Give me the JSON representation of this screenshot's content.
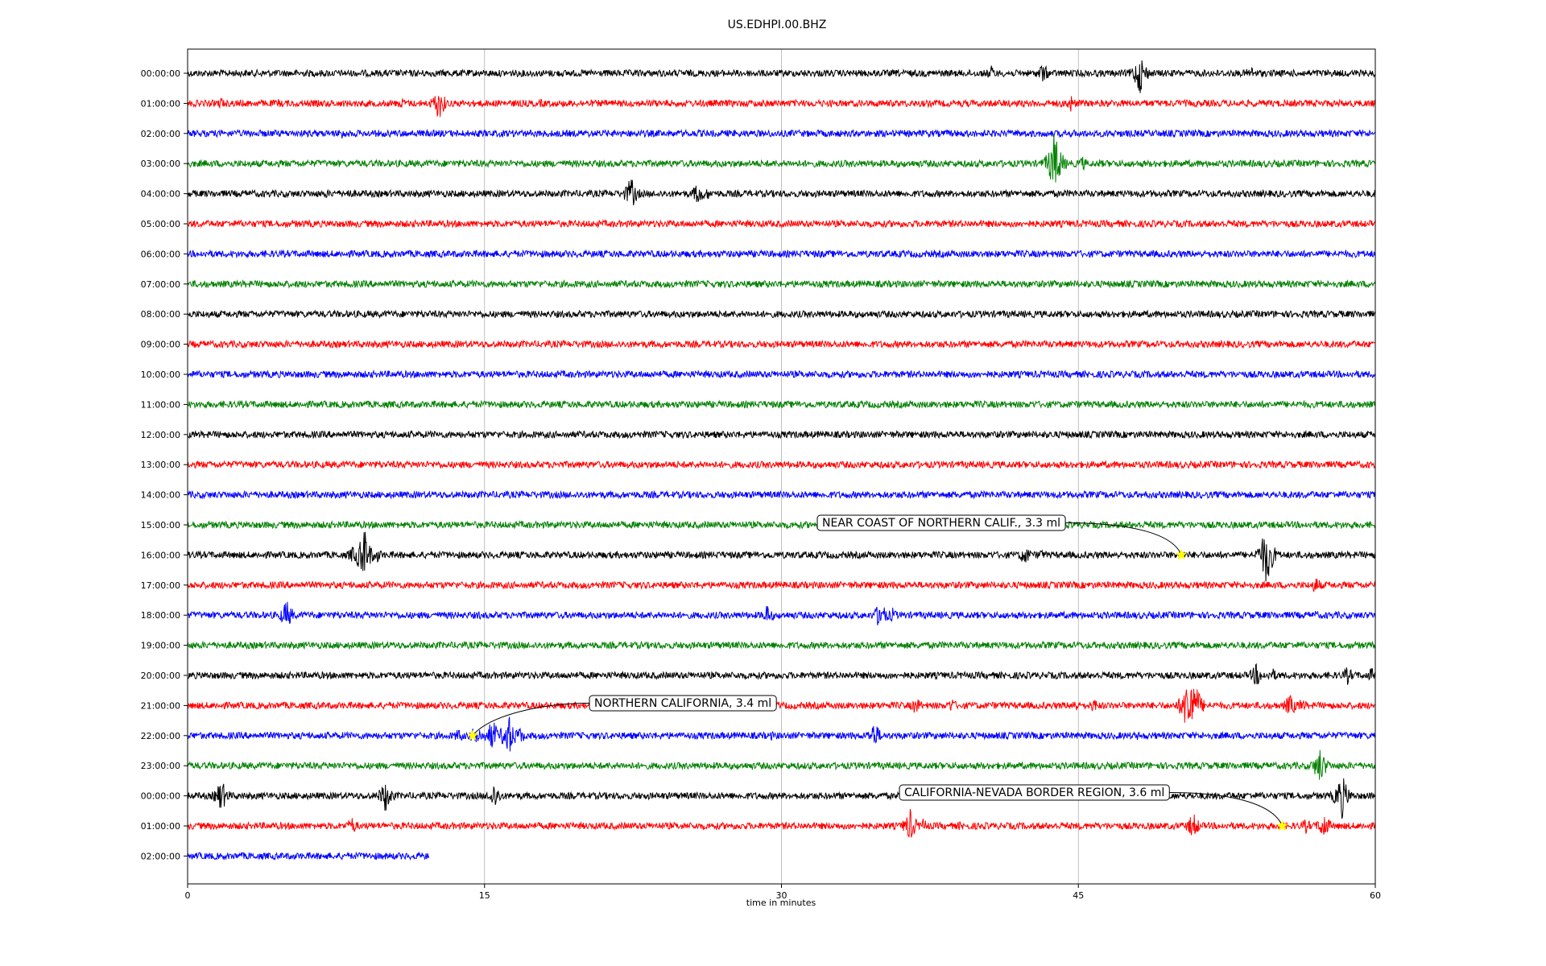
{
  "chart_data": {
    "type": "line",
    "title": "US.EDHPI.00.BHZ",
    "xlabel": "time in minutes",
    "ylabel": "",
    "xlim": [
      0,
      60
    ],
    "xticks": [
      "0",
      "15",
      "30",
      "45",
      "60"
    ],
    "grid": "vertical lines at x ticks",
    "colors_cycle": [
      "#000000",
      "#ff0000",
      "#0000ff",
      "#008000"
    ],
    "rows": [
      {
        "label": "00:00:00",
        "color": "#000000",
        "end_minute": 60,
        "bursts": [
          [
            40.6,
            10
          ],
          [
            43.2,
            14
          ],
          [
            48.1,
            28
          ],
          [
            53.7,
            10
          ]
        ]
      },
      {
        "label": "01:00:00",
        "color": "#ff0000",
        "end_minute": 60,
        "bursts": [
          [
            1.7,
            8
          ],
          [
            4.6,
            6
          ],
          [
            10.8,
            8
          ],
          [
            12.7,
            22
          ],
          [
            17.9,
            6
          ],
          [
            44.6,
            12
          ]
        ]
      },
      {
        "label": "02:00:00",
        "color": "#0000ff",
        "end_minute": 60,
        "bursts": [
          [
            7.8,
            8
          ],
          [
            5.0,
            4
          ]
        ]
      },
      {
        "label": "03:00:00",
        "color": "#008000",
        "end_minute": 60,
        "bursts": [
          [
            43.8,
            42
          ],
          [
            45.2,
            10
          ],
          [
            46.1,
            6
          ]
        ]
      },
      {
        "label": "04:00:00",
        "color": "#000000",
        "end_minute": 60,
        "bursts": [
          [
            7.0,
            6
          ],
          [
            8.1,
            8
          ],
          [
            22.4,
            22
          ],
          [
            25.8,
            16
          ],
          [
            26.3,
            8
          ]
        ]
      },
      {
        "label": "05:00:00",
        "color": "#ff0000",
        "end_minute": 60,
        "bursts": [
          [
            47.0,
            5
          ]
        ]
      },
      {
        "label": "06:00:00",
        "color": "#0000ff",
        "end_minute": 60,
        "bursts": [
          [
            31.9,
            6
          ]
        ]
      },
      {
        "label": "07:00:00",
        "color": "#008000",
        "end_minute": 60,
        "bursts": []
      },
      {
        "label": "08:00:00",
        "color": "#000000",
        "end_minute": 60,
        "bursts": []
      },
      {
        "label": "09:00:00",
        "color": "#ff0000",
        "end_minute": 60,
        "bursts": []
      },
      {
        "label": "10:00:00",
        "color": "#0000ff",
        "end_minute": 60,
        "bursts": []
      },
      {
        "label": "11:00:00",
        "color": "#008000",
        "end_minute": 60,
        "bursts": []
      },
      {
        "label": "12:00:00",
        "color": "#000000",
        "end_minute": 60,
        "bursts": [
          [
            23.4,
            4
          ]
        ]
      },
      {
        "label": "13:00:00",
        "color": "#ff0000",
        "end_minute": 60,
        "bursts": []
      },
      {
        "label": "14:00:00",
        "color": "#0000ff",
        "end_minute": 60,
        "bursts": []
      },
      {
        "label": "15:00:00",
        "color": "#008000",
        "end_minute": 60,
        "bursts": []
      },
      {
        "label": "16:00:00",
        "color": "#000000",
        "end_minute": 60,
        "bursts": [
          [
            8.4,
            14
          ],
          [
            8.9,
            36
          ],
          [
            9.6,
            10
          ],
          [
            42.3,
            14
          ],
          [
            43.1,
            8
          ],
          [
            54.5,
            40
          ]
        ]
      },
      {
        "label": "17:00:00",
        "color": "#ff0000",
        "end_minute": 60,
        "bursts": [
          [
            57.0,
            12
          ]
        ]
      },
      {
        "label": "18:00:00",
        "color": "#0000ff",
        "end_minute": 60,
        "bursts": [
          [
            5.0,
            20
          ],
          [
            14.7,
            6
          ],
          [
            29.3,
            14
          ],
          [
            35.0,
            20
          ],
          [
            35.6,
            10
          ],
          [
            57.0,
            6
          ]
        ]
      },
      {
        "label": "19:00:00",
        "color": "#008000",
        "end_minute": 60,
        "bursts": [
          [
            51.2,
            6
          ]
        ]
      },
      {
        "label": "20:00:00",
        "color": "#000000",
        "end_minute": 60,
        "bursts": [
          [
            54.0,
            16
          ],
          [
            54.8,
            10
          ],
          [
            58.6,
            12
          ],
          [
            59.8,
            10
          ]
        ]
      },
      {
        "label": "21:00:00",
        "color": "#ff0000",
        "end_minute": 60,
        "bursts": [
          [
            50.6,
            48
          ],
          [
            51.0,
            22
          ],
          [
            36.8,
            12
          ],
          [
            38.6,
            10
          ],
          [
            44.8,
            10
          ],
          [
            45.8,
            10
          ],
          [
            55.7,
            16
          ],
          [
            56.3,
            10
          ]
        ]
      },
      {
        "label": "22:00:00",
        "color": "#0000ff",
        "end_minute": 60,
        "bursts": [
          [
            13.7,
            10
          ],
          [
            14.6,
            16
          ],
          [
            15.4,
            22
          ],
          [
            16.2,
            30
          ],
          [
            16.8,
            12
          ],
          [
            29.5,
            6
          ],
          [
            34.7,
            18
          ],
          [
            48.0,
            6
          ],
          [
            57.1,
            6
          ]
        ]
      },
      {
        "label": "23:00:00",
        "color": "#008000",
        "end_minute": 60,
        "bursts": [
          [
            57.2,
            24
          ],
          [
            57.5,
            10
          ]
        ]
      },
      {
        "label": "00:00:00",
        "color": "#000000",
        "end_minute": 60,
        "bursts": [
          [
            1.7,
            22
          ],
          [
            10.0,
            22
          ],
          [
            15.5,
            18
          ],
          [
            58.3,
            30
          ]
        ]
      },
      {
        "label": "01:00:00",
        "color": "#ff0000",
        "end_minute": 60,
        "bursts": [
          [
            8.3,
            12
          ],
          [
            36.5,
            22
          ],
          [
            37.2,
            10
          ],
          [
            50.8,
            18
          ],
          [
            57.4,
            18
          ],
          [
            56.5,
            10
          ],
          [
            39.0,
            6
          ]
        ]
      },
      {
        "label": "02:00:00",
        "color": "#0000ff",
        "end_minute": 12.2,
        "bursts": []
      }
    ],
    "events": [
      {
        "label": "NEAR COAST OF NORTHERN CALIF., 3.3 ml",
        "row": 16,
        "minute": 50.2
      },
      {
        "label": "NORTHERN CALIFORNIA, 3.4 ml",
        "row": 22,
        "minute": 14.4
      },
      {
        "label": "CALIFORNIA-NEVADA BORDER REGION, 3.6 ml",
        "row": 25,
        "minute": 55.3
      }
    ]
  },
  "marker_color": "#ffff00"
}
